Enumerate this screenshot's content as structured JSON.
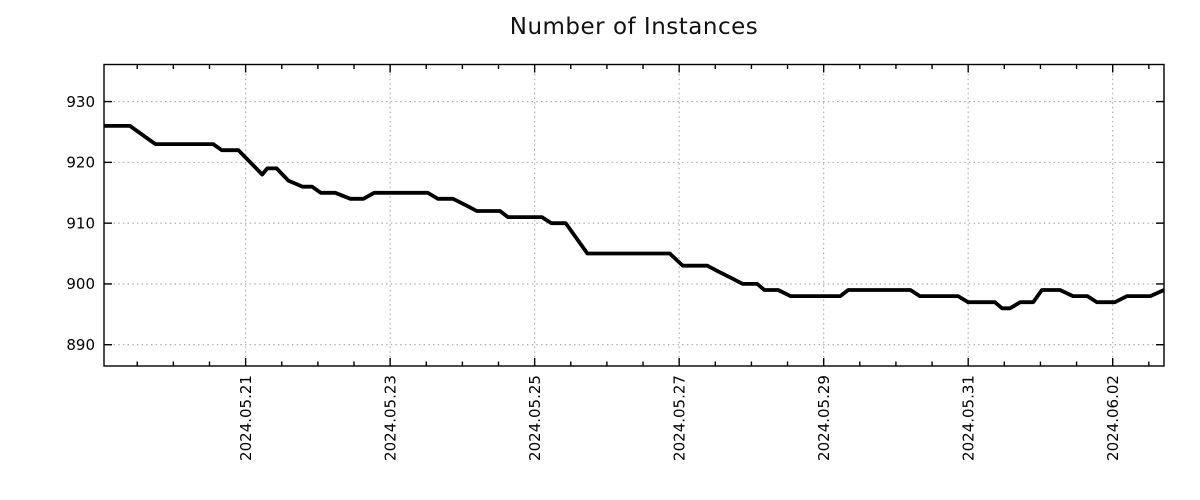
{
  "figure": {
    "background": "#ffffff",
    "text_color": "#000000",
    "grid_color": "#a8a8a8"
  },
  "chart_data": {
    "type": "line",
    "title": "Number of Instances",
    "legend": {
      "show": false
    },
    "grid": {
      "show": true,
      "style": "dotted"
    },
    "x_axis": {
      "kind": "time",
      "unit": "days_from_plot_left_edge",
      "range": [
        0,
        14.67
      ],
      "major_ticks": [
        {
          "offset": 1.96,
          "label": "2024.05.21"
        },
        {
          "offset": 3.96,
          "label": "2024.05.23"
        },
        {
          "offset": 5.96,
          "label": "2024.05.25"
        },
        {
          "offset": 7.96,
          "label": "2024.05.27"
        },
        {
          "offset": 9.96,
          "label": "2024.05.29"
        },
        {
          "offset": 11.96,
          "label": "2024.05.31"
        },
        {
          "offset": 13.96,
          "label": "2024.06.02"
        }
      ],
      "minor_tick_start": 0.46,
      "minor_tick_step": 0.5,
      "label_rotation_deg": -90
    },
    "y_axis": {
      "range": [
        886.5,
        936.1
      ],
      "ticks": [
        890,
        900,
        910,
        920,
        930
      ]
    },
    "series": [
      {
        "name": "instances",
        "color": "#000000",
        "line_width": 3.8,
        "points": [
          [
            0.0,
            926
          ],
          [
            0.36,
            926
          ],
          [
            0.71,
            923
          ],
          [
            1.51,
            923
          ],
          [
            1.63,
            922
          ],
          [
            1.86,
            922
          ],
          [
            2.19,
            918
          ],
          [
            2.26,
            919
          ],
          [
            2.39,
            919
          ],
          [
            2.55,
            917
          ],
          [
            2.75,
            916
          ],
          [
            2.88,
            916
          ],
          [
            3.0,
            915
          ],
          [
            3.2,
            915
          ],
          [
            3.41,
            914
          ],
          [
            3.59,
            914
          ],
          [
            3.74,
            915
          ],
          [
            4.48,
            915
          ],
          [
            4.62,
            914
          ],
          [
            4.83,
            914
          ],
          [
            5.0,
            913
          ],
          [
            5.16,
            912
          ],
          [
            5.48,
            912
          ],
          [
            5.59,
            911
          ],
          [
            6.06,
            911
          ],
          [
            6.19,
            910
          ],
          [
            6.39,
            910
          ],
          [
            6.69,
            905
          ],
          [
            7.83,
            905
          ],
          [
            8.01,
            903
          ],
          [
            8.35,
            903
          ],
          [
            8.51,
            902
          ],
          [
            8.68,
            901
          ],
          [
            8.84,
            900
          ],
          [
            9.04,
            900
          ],
          [
            9.14,
            899
          ],
          [
            9.33,
            899
          ],
          [
            9.5,
            898
          ],
          [
            10.19,
            898
          ],
          [
            10.3,
            899
          ],
          [
            11.16,
            899
          ],
          [
            11.29,
            898
          ],
          [
            11.82,
            898
          ],
          [
            11.96,
            897
          ],
          [
            12.33,
            897
          ],
          [
            12.43,
            896
          ],
          [
            12.54,
            896
          ],
          [
            12.68,
            897
          ],
          [
            12.86,
            897
          ],
          [
            12.98,
            899
          ],
          [
            13.23,
            899
          ],
          [
            13.41,
            898
          ],
          [
            13.61,
            898
          ],
          [
            13.74,
            897
          ],
          [
            13.99,
            897
          ],
          [
            14.16,
            898
          ],
          [
            14.48,
            898
          ],
          [
            14.67,
            899
          ]
        ]
      }
    ]
  }
}
